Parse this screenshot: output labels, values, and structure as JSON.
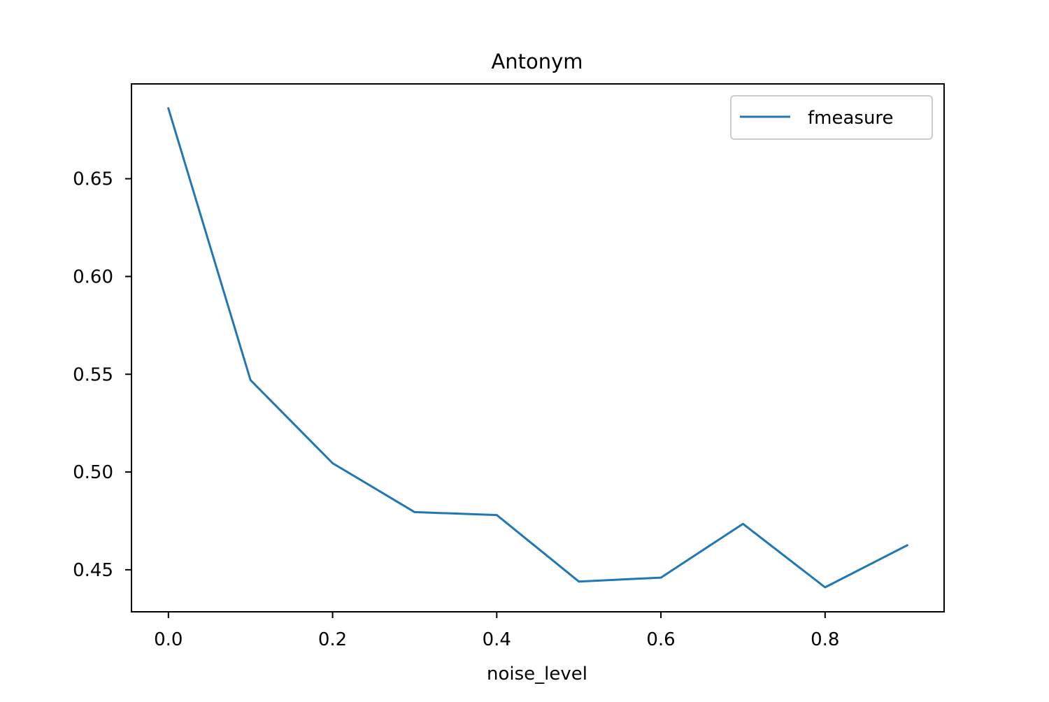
{
  "chart_data": {
    "type": "line",
    "title": "Antonym",
    "xlabel": "noise_level",
    "ylabel": "",
    "x": [
      0.0,
      0.1,
      0.2,
      0.3,
      0.4,
      0.5,
      0.6,
      0.7,
      0.8,
      0.9
    ],
    "series": [
      {
        "name": "fmeasure",
        "color": "#1f77b4",
        "values": [
          0.686,
          0.547,
          0.5045,
          0.4795,
          0.478,
          0.444,
          0.446,
          0.4735,
          0.441,
          0.4625
        ]
      }
    ],
    "xlim": [
      -0.045,
      0.945
    ],
    "ylim": [
      0.4285,
      0.6985
    ],
    "xticks": [
      0.0,
      0.2,
      0.4,
      0.6,
      0.8
    ],
    "xtick_labels": [
      "0.0",
      "0.2",
      "0.4",
      "0.6",
      "0.8"
    ],
    "yticks": [
      0.45,
      0.5,
      0.55,
      0.6,
      0.65
    ],
    "ytick_labels": [
      "0.45",
      "0.50",
      "0.55",
      "0.60",
      "0.65"
    ],
    "grid": false,
    "legend_position": "top-right"
  }
}
